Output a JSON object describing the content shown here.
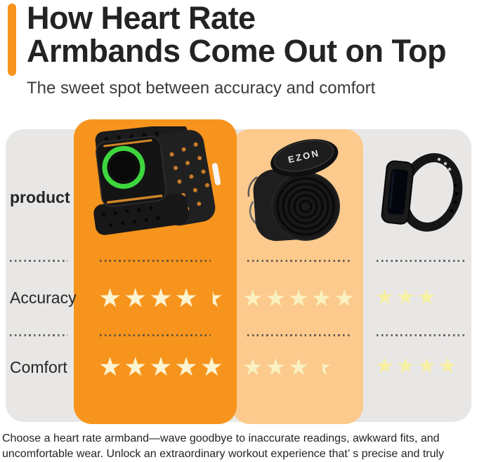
{
  "header": {
    "title_line1": "How Heart Rate",
    "title_line2": "Armbands Come Out on Top",
    "subtitle": "The sweet spot between accuracy and comfort"
  },
  "comparison": {
    "row_labels": {
      "product": "product",
      "accuracy": "Accuracy",
      "comfort": "Comfort"
    },
    "products": [
      {
        "id": "heart-rate-armband",
        "description": "black armband with green optical sensor ring",
        "highlighted": true
      },
      {
        "id": "ezon-clip-monitor",
        "description": "EZON clip-on heart rate monitor with coiled strap",
        "brand": "EZON"
      },
      {
        "id": "fitness-wristband",
        "description": "slim black fitness tracker wristband"
      }
    ]
  },
  "chart_data": {
    "type": "table",
    "title": "How Heart Rate Armbands Come Out on Top",
    "subtitle": "The sweet spot between accuracy and comfort",
    "row_headers": [
      "product",
      "Accuracy",
      "Comfort"
    ],
    "columns": [
      "Heart rate armband (highlighted)",
      "EZON clip heart rate monitor",
      "Fitness wristband"
    ],
    "series": [
      {
        "name": "Accuracy",
        "values": [
          4.5,
          5,
          3
        ]
      },
      {
        "name": "Comfort",
        "values": [
          5,
          3.5,
          4
        ]
      }
    ],
    "max_stars": 5,
    "highlighted_column": 0,
    "half_star_style": "right-half"
  },
  "footer": {
    "paragraph": "Choose a heart rate armband—wave goodbye to inaccurate readings, awkward fits, and uncomfortable wear. Unlock an extraordinary workout experience that’ s precise and truly yours."
  },
  "colors": {
    "accent_orange": "#F7941D",
    "peach_column": "#FBCA8C",
    "gray_panel": "#E9E7E5",
    "sensor_green": "#3ED63E",
    "star_colors": [
      "#FCF3D1",
      "#FAF0C0",
      "#F8F0A3"
    ]
  }
}
